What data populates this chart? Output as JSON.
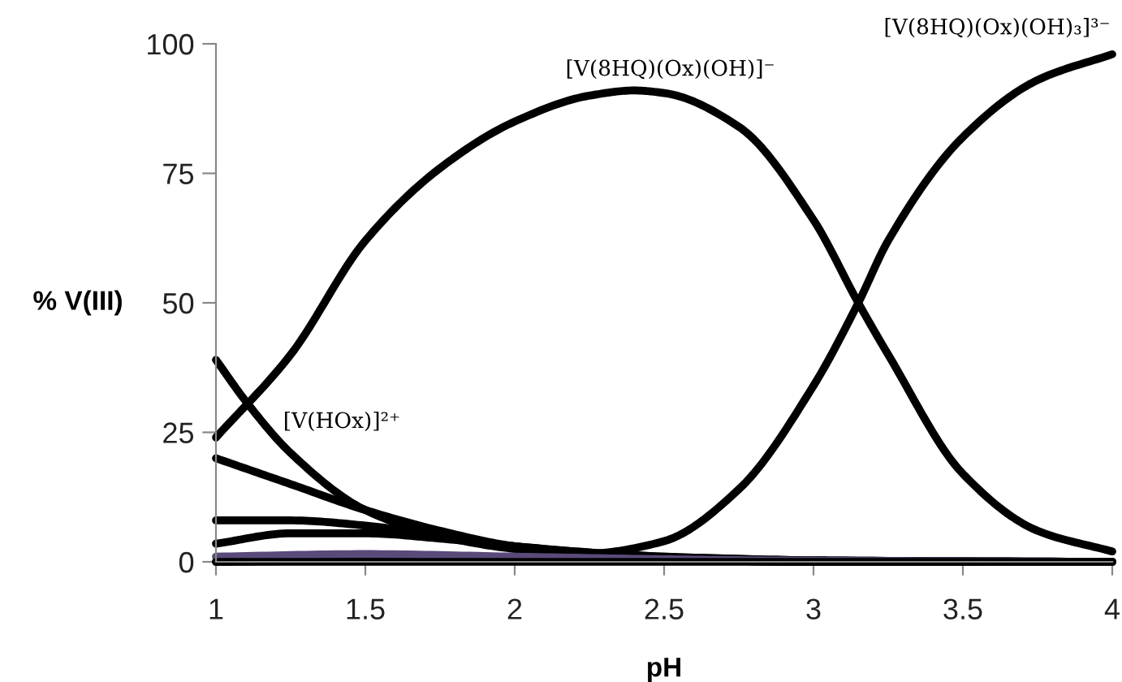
{
  "chart_data": {
    "type": "line",
    "xlabel": "pH",
    "ylabel": "% V(III)",
    "xlim": [
      1,
      4
    ],
    "xticks": [
      1,
      1.5,
      2,
      2.5,
      3,
      3.5,
      4
    ],
    "ylim": [
      0,
      100
    ],
    "yticks": [
      0,
      25,
      50,
      75,
      100
    ],
    "grid": false,
    "legend": false,
    "marker": "none",
    "line_style": "solid",
    "series": [
      {
        "name": "[V(8HQ)(Ox)(OH)]⁻",
        "color": "#000000",
        "x": [
          1,
          1.25,
          1.5,
          1.75,
          2.0,
          2.25,
          2.4,
          2.5,
          2.75,
          3.0,
          3.15,
          3.25,
          3.5,
          3.75,
          4.0
        ],
        "values": [
          24,
          40,
          62,
          76,
          85,
          90,
          91,
          90.5,
          84,
          66,
          50,
          40,
          17,
          6,
          2
        ]
      },
      {
        "name": "[V(8HQ)(Ox)(OH)₃]³⁻",
        "color": "#000000",
        "x": [
          1,
          1.5,
          2.0,
          2.25,
          2.5,
          2.75,
          3.0,
          3.15,
          3.25,
          3.5,
          3.75,
          4.0
        ],
        "values": [
          0,
          0.3,
          1,
          1.5,
          4,
          14,
          34,
          50,
          62,
          82,
          93,
          98
        ]
      },
      {
        "name": "[V(HOx)]²⁺",
        "color": "#000000",
        "x": [
          1,
          1.1,
          1.25,
          1.5,
          1.75,
          2.0,
          2.5,
          3.0,
          4.0
        ],
        "values": [
          39,
          31,
          21,
          10,
          5,
          2.5,
          0.5,
          0,
          0
        ]
      },
      {
        "color": "#000000",
        "x": [
          1,
          1.25,
          1.5,
          1.75,
          2.0,
          2.5,
          3.0,
          4.0
        ],
        "values": [
          20,
          15,
          10,
          6,
          3,
          0.5,
          0,
          0
        ]
      },
      {
        "color": "#000000",
        "x": [
          1,
          1.25,
          1.5,
          1.75,
          2.0,
          2.5,
          3.0,
          4.0
        ],
        "values": [
          8,
          8,
          7,
          5,
          3,
          1,
          0.3,
          0
        ]
      },
      {
        "color": "#000000",
        "x": [
          1,
          1.25,
          1.5,
          1.75,
          2.0,
          2.5,
          3.0,
          4.0
        ],
        "values": [
          3.5,
          5.5,
          5.5,
          4.5,
          3,
          1,
          0.3,
          0
        ]
      },
      {
        "color": "#5a4a7a",
        "x": [
          1,
          1.5,
          2.0,
          2.5,
          3.0,
          4.0
        ],
        "values": [
          1,
          1.5,
          1,
          0.5,
          0.2,
          0
        ]
      },
      {
        "color": "#000000",
        "x": [
          1,
          2.0,
          3.0,
          4.0
        ],
        "values": [
          0,
          0,
          0,
          0
        ]
      }
    ]
  }
}
